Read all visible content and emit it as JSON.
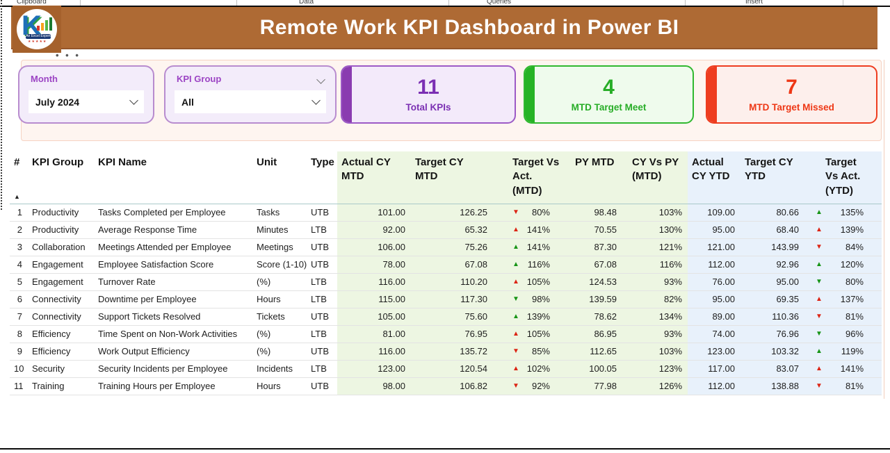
{
  "ribbon": {
    "items": [
      "Clipboard",
      "Data",
      "Queries",
      "Insert"
    ]
  },
  "header": {
    "title": "Remote Work KPI Dashboard in Power BI",
    "logo_text": "K",
    "logo_banner": "An Excel Expert",
    "logo_stars": "★★★★★"
  },
  "menu": {
    "ellipsis": "…"
  },
  "filters": {
    "month": {
      "label": "Month",
      "value": "July 2024"
    },
    "kpi_group": {
      "label": "KPI Group",
      "value": "All"
    }
  },
  "cards": [
    {
      "id": "total",
      "value": "11",
      "label": "Total KPIs",
      "accent": "#8a3cb0",
      "text": "#7b2fb3"
    },
    {
      "id": "meet",
      "value": "4",
      "label": "MTD Target Meet",
      "accent": "#27b326",
      "text": "#27ad27"
    },
    {
      "id": "missed",
      "value": "7",
      "label": "MTD Target Missed",
      "accent": "#ee3d20",
      "text": "#ee3715"
    }
  ],
  "table": {
    "sort_indicator": "▲",
    "columns": [
      {
        "key": "num",
        "label": "#",
        "section": "plain"
      },
      {
        "key": "group",
        "label": "KPI Group",
        "section": "plain"
      },
      {
        "key": "name",
        "label": "KPI Name",
        "section": "plain"
      },
      {
        "key": "unit",
        "label": "Unit",
        "section": "plain"
      },
      {
        "key": "type",
        "label": "Type",
        "section": "plain"
      },
      {
        "key": "act_mtd",
        "label": "Actual CY\nMTD",
        "section": "green"
      },
      {
        "key": "tgt_mtd",
        "label": "Target CY\nMTD",
        "section": "green"
      },
      {
        "key": "tva_mtd",
        "label": "Target Vs\nAct.\n(MTD)",
        "section": "green"
      },
      {
        "key": "py_mtd",
        "label": "PY MTD",
        "section": "green"
      },
      {
        "key": "cy_py",
        "label": "CY Vs PY\n(MTD)",
        "section": "green"
      },
      {
        "key": "act_ytd",
        "label": "Actual\nCY YTD",
        "section": "blue"
      },
      {
        "key": "tgt_ytd",
        "label": "Target CY\nYTD",
        "section": "blue"
      },
      {
        "key": "tva_ytd",
        "label": "Target\nVs Act.\n(YTD)",
        "section": "blue"
      }
    ],
    "rows": [
      {
        "num": "1",
        "group": "Productivity",
        "name": "Tasks Completed per Employee",
        "unit": "Tasks",
        "type": "UTB",
        "act_mtd": "101.00",
        "tgt_mtd": "126.25",
        "tva_mtd": {
          "dir": "down",
          "tone": "red",
          "value": "80%"
        },
        "py_mtd": "98.48",
        "cy_py": "103%",
        "act_ytd": "109.00",
        "tgt_ytd": "80.66",
        "tva_ytd": {
          "dir": "up",
          "tone": "green",
          "value": "135%"
        }
      },
      {
        "num": "2",
        "group": "Productivity",
        "name": "Average Response Time",
        "unit": "Minutes",
        "type": "LTB",
        "act_mtd": "92.00",
        "tgt_mtd": "65.32",
        "tva_mtd": {
          "dir": "up",
          "tone": "red",
          "value": "141%"
        },
        "py_mtd": "70.55",
        "cy_py": "130%",
        "act_ytd": "95.00",
        "tgt_ytd": "68.40",
        "tva_ytd": {
          "dir": "up",
          "tone": "red",
          "value": "139%"
        }
      },
      {
        "num": "3",
        "group": "Collaboration",
        "name": "Meetings Attended per Employee",
        "unit": "Meetings",
        "type": "UTB",
        "act_mtd": "106.00",
        "tgt_mtd": "75.26",
        "tva_mtd": {
          "dir": "up",
          "tone": "green",
          "value": "141%"
        },
        "py_mtd": "87.30",
        "cy_py": "121%",
        "act_ytd": "121.00",
        "tgt_ytd": "143.99",
        "tva_ytd": {
          "dir": "down",
          "tone": "red",
          "value": "84%"
        }
      },
      {
        "num": "4",
        "group": "Engagement",
        "name": "Employee Satisfaction Score",
        "unit": "Score (1-10)",
        "type": "UTB",
        "act_mtd": "78.00",
        "tgt_mtd": "67.08",
        "tva_mtd": {
          "dir": "up",
          "tone": "green",
          "value": "116%"
        },
        "py_mtd": "67.08",
        "cy_py": "116%",
        "act_ytd": "112.00",
        "tgt_ytd": "92.96",
        "tva_ytd": {
          "dir": "up",
          "tone": "green",
          "value": "120%"
        }
      },
      {
        "num": "5",
        "group": "Engagement",
        "name": "Turnover Rate",
        "unit": "(%)",
        "type": "LTB",
        "act_mtd": "116.00",
        "tgt_mtd": "110.20",
        "tva_mtd": {
          "dir": "up",
          "tone": "red",
          "value": "105%"
        },
        "py_mtd": "124.53",
        "cy_py": "93%",
        "act_ytd": "76.00",
        "tgt_ytd": "95.00",
        "tva_ytd": {
          "dir": "down",
          "tone": "green",
          "value": "80%"
        }
      },
      {
        "num": "6",
        "group": "Connectivity",
        "name": "Downtime per Employee",
        "unit": "Hours",
        "type": "LTB",
        "act_mtd": "115.00",
        "tgt_mtd": "117.30",
        "tva_mtd": {
          "dir": "down",
          "tone": "green",
          "value": "98%"
        },
        "py_mtd": "139.59",
        "cy_py": "82%",
        "act_ytd": "95.00",
        "tgt_ytd": "69.35",
        "tva_ytd": {
          "dir": "up",
          "tone": "red",
          "value": "137%"
        }
      },
      {
        "num": "7",
        "group": "Connectivity",
        "name": "Support Tickets Resolved",
        "unit": "Tickets",
        "type": "UTB",
        "act_mtd": "105.00",
        "tgt_mtd": "75.60",
        "tva_mtd": {
          "dir": "up",
          "tone": "green",
          "value": "139%"
        },
        "py_mtd": "78.62",
        "cy_py": "134%",
        "act_ytd": "89.00",
        "tgt_ytd": "110.36",
        "tva_ytd": {
          "dir": "down",
          "tone": "red",
          "value": "81%"
        }
      },
      {
        "num": "8",
        "group": "Efficiency",
        "name": "Time Spent on Non-Work Activities",
        "unit": "(%)",
        "type": "LTB",
        "act_mtd": "81.00",
        "tgt_mtd": "76.95",
        "tva_mtd": {
          "dir": "up",
          "tone": "red",
          "value": "105%"
        },
        "py_mtd": "86.95",
        "cy_py": "93%",
        "act_ytd": "74.00",
        "tgt_ytd": "76.96",
        "tva_ytd": {
          "dir": "down",
          "tone": "green",
          "value": "96%"
        }
      },
      {
        "num": "9",
        "group": "Efficiency",
        "name": "Work Output Efficiency",
        "unit": "(%)",
        "type": "UTB",
        "act_mtd": "116.00",
        "tgt_mtd": "135.72",
        "tva_mtd": {
          "dir": "down",
          "tone": "red",
          "value": "85%"
        },
        "py_mtd": "112.65",
        "cy_py": "103%",
        "act_ytd": "123.00",
        "tgt_ytd": "103.32",
        "tva_ytd": {
          "dir": "up",
          "tone": "green",
          "value": "119%"
        }
      },
      {
        "num": "10",
        "group": "Security",
        "name": "Security Incidents per Employee",
        "unit": "Incidents",
        "type": "LTB",
        "act_mtd": "123.00",
        "tgt_mtd": "120.54",
        "tva_mtd": {
          "dir": "up",
          "tone": "red",
          "value": "102%"
        },
        "py_mtd": "100.05",
        "cy_py": "123%",
        "act_ytd": "117.00",
        "tgt_ytd": "83.07",
        "tva_ytd": {
          "dir": "up",
          "tone": "red",
          "value": "141%"
        }
      },
      {
        "num": "11",
        "group": "Training",
        "name": "Training Hours per Employee",
        "unit": "Hours",
        "type": "UTB",
        "act_mtd": "98.00",
        "tgt_mtd": "106.82",
        "tva_mtd": {
          "dir": "down",
          "tone": "red",
          "value": "92%"
        },
        "py_mtd": "77.98",
        "cy_py": "126%",
        "act_ytd": "112.00",
        "tgt_ytd": "138.88",
        "tva_ytd": {
          "dir": "down",
          "tone": "red",
          "value": "81%"
        }
      }
    ]
  },
  "colors": {
    "header_brown": "#ae6a34",
    "purple": "#7b2fb3",
    "green": "#27ad27",
    "red": "#ee3715",
    "table_green_bg": "#edf6e2",
    "table_blue_bg": "#e8f1fb",
    "arrow_green": "#169416",
    "arrow_red": "#dc2414"
  }
}
